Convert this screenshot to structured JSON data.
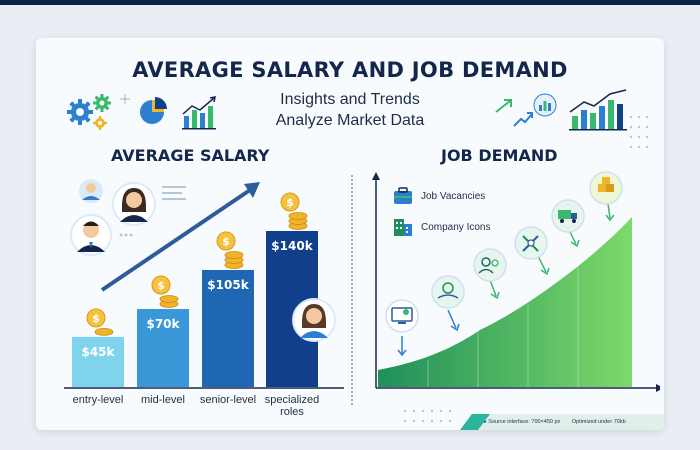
{
  "header": {
    "title": "AVERAGE SALARY AND JOB DEMAND",
    "subtitle_line1": "Insights and Trends",
    "subtitle_line2": "Analyze Market Data"
  },
  "salary": {
    "section_title": "AVERAGE SALARY",
    "bars": [
      {
        "label": "entry-level",
        "value_label": "$45k",
        "value": 45,
        "color": "#7fd3ec"
      },
      {
        "label": "mid-level",
        "value_label": "$70k",
        "value": 70,
        "color": "#3a98d8"
      },
      {
        "label": "senior-level",
        "value_label": "$105k",
        "value": 105,
        "color": "#1f66b3"
      },
      {
        "label": "specialized roles",
        "label_line1": "specialized",
        "label_line2": "roles",
        "value_label": "$140k",
        "value": 140,
        "color": "#123f8c"
      }
    ]
  },
  "demand": {
    "section_title": "JOB DEMAND",
    "legend": [
      {
        "label": "Job Vacancies",
        "icon": "briefcase-icon"
      },
      {
        "label": "Company Icons",
        "icon": "building-icon"
      }
    ]
  },
  "footer": {
    "source": "▸ Source interface: 700×450 px",
    "optimized": "Optimized under 70kb"
  },
  "colors": {
    "navy": "#14274a",
    "green": "#3bb870",
    "accent_teal": "#2bb59c"
  }
}
